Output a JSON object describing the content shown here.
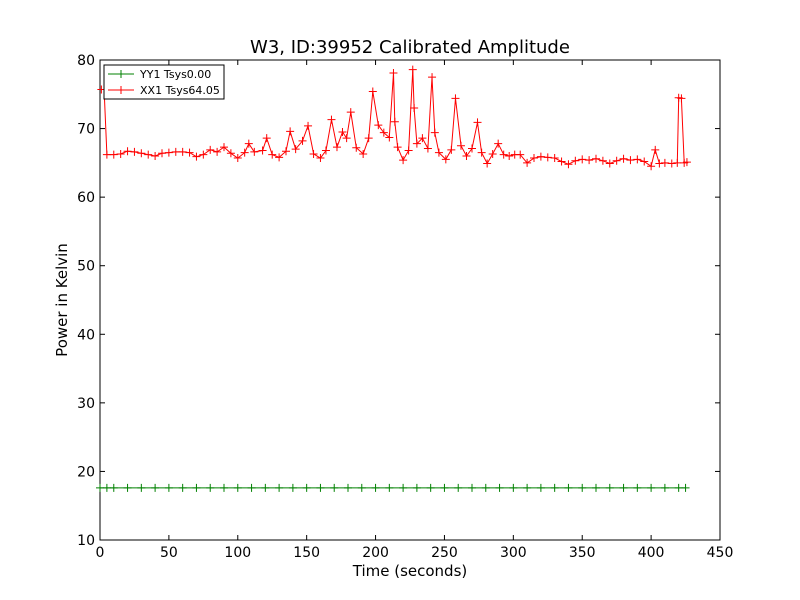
{
  "chart_data": {
    "type": "line",
    "title": "W3, ID:39952 Calibrated Amplitude",
    "xlabel": "Time (seconds)",
    "ylabel": "Power in Kelvin",
    "xlim": [
      0,
      450
    ],
    "ylim": [
      10,
      80
    ],
    "x_ticks": [
      0,
      50,
      100,
      150,
      200,
      250,
      300,
      350,
      400,
      450
    ],
    "y_ticks": [
      10,
      20,
      30,
      40,
      50,
      60,
      70,
      80
    ],
    "x_tick_labels": [
      "0",
      "50",
      "100",
      "150",
      "200",
      "250",
      "300",
      "350",
      "400",
      "450"
    ],
    "y_tick_labels": [
      "10",
      "20",
      "30",
      "40",
      "50",
      "60",
      "70",
      "80"
    ],
    "grid": false,
    "legend_position": "top-left",
    "series": [
      {
        "name": "YY1 Tsys0.00",
        "color": "#008000",
        "marker": "plus",
        "x": [
          0,
          5,
          10,
          20,
          30,
          40,
          50,
          60,
          70,
          80,
          90,
          100,
          110,
          120,
          130,
          140,
          150,
          160,
          170,
          180,
          190,
          200,
          210,
          220,
          230,
          240,
          250,
          260,
          270,
          280,
          290,
          300,
          310,
          320,
          330,
          340,
          350,
          360,
          370,
          380,
          390,
          400,
          410,
          420,
          425
        ],
        "y": [
          17.6,
          17.6,
          17.6,
          17.6,
          17.6,
          17.6,
          17.6,
          17.6,
          17.6,
          17.6,
          17.6,
          17.6,
          17.6,
          17.6,
          17.6,
          17.6,
          17.6,
          17.6,
          17.6,
          17.6,
          17.6,
          17.6,
          17.6,
          17.6,
          17.6,
          17.6,
          17.6,
          17.6,
          17.6,
          17.6,
          17.6,
          17.6,
          17.6,
          17.6,
          17.6,
          17.6,
          17.6,
          17.6,
          17.6,
          17.6,
          17.6,
          17.6,
          17.6,
          17.6,
          17.6
        ]
      },
      {
        "name": "XX1 Tsys64.05",
        "color": "#ff0000",
        "marker": "plus",
        "x": [
          1,
          3,
          5,
          10,
          15,
          20,
          25,
          30,
          35,
          40,
          45,
          50,
          55,
          60,
          65,
          70,
          75,
          80,
          85,
          90,
          95,
          100,
          105,
          108,
          112,
          118,
          121,
          125,
          130,
          135,
          138,
          142,
          147,
          151,
          155,
          160,
          164,
          168,
          172,
          176,
          179,
          182,
          186,
          191,
          195,
          198,
          202,
          206,
          210,
          213,
          214,
          216,
          220,
          224,
          227,
          228,
          230,
          234,
          238,
          241,
          243,
          246,
          251,
          255,
          258,
          262,
          266,
          270,
          274,
          277,
          281,
          285,
          289,
          293,
          297,
          301,
          305,
          310,
          315,
          320,
          325,
          330,
          335,
          340,
          345,
          350,
          355,
          360,
          365,
          370,
          375,
          380,
          385,
          390,
          395,
          400,
          403,
          406,
          410,
          415,
          419,
          420,
          422,
          424,
          426
        ],
        "y": [
          75.7,
          75.7,
          66.2,
          66.2,
          66.3,
          66.7,
          66.6,
          66.4,
          66.2,
          66.0,
          66.4,
          66.5,
          66.6,
          66.6,
          66.5,
          65.9,
          66.2,
          66.9,
          66.6,
          67.3,
          66.4,
          65.7,
          66.5,
          67.8,
          66.6,
          66.8,
          68.6,
          66.2,
          65.8,
          66.7,
          69.6,
          67.0,
          68.2,
          70.4,
          66.3,
          65.7,
          66.8,
          71.3,
          67.3,
          69.5,
          68.6,
          72.4,
          67.2,
          66.3,
          68.6,
          75.4,
          70.5,
          69.4,
          68.7,
          78.1,
          71.0,
          67.3,
          65.4,
          66.8,
          78.6,
          73.0,
          67.8,
          68.6,
          67.1,
          77.5,
          69.4,
          66.5,
          65.5,
          66.9,
          74.4,
          67.5,
          66.0,
          67.1,
          70.9,
          66.5,
          64.9,
          66.3,
          67.8,
          66.2,
          66.0,
          66.2,
          66.2,
          65.0,
          65.7,
          65.9,
          65.8,
          65.7,
          65.2,
          64.8,
          65.3,
          65.5,
          65.4,
          65.6,
          65.3,
          64.9,
          65.3,
          65.6,
          65.4,
          65.5,
          65.2,
          64.5,
          66.9,
          64.9,
          65.0,
          64.9,
          65.0,
          74.5,
          74.4,
          65.0,
          65.1
        ]
      }
    ]
  }
}
